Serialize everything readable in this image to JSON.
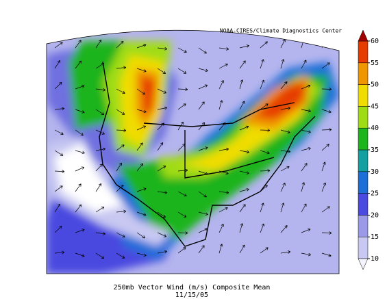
{
  "map": {
    "credit": "NOAA-CIRES/Climate Diagnostics Center",
    "caption": "250mb Vector Wind (m/s) Composite Mean",
    "date": "11/15/05",
    "colorbar": {
      "ticks": [
        10,
        15,
        20,
        25,
        30,
        35,
        40,
        45,
        50,
        55,
        60
      ],
      "below_color": "#f4f4ff",
      "colors": [
        "#c8c8f2",
        "#9a9ae8",
        "#4a4ae0",
        "#1e6ed8",
        "#14a0a0",
        "#1eb41e",
        "#a0dc14",
        "#f0dc00",
        "#f09600",
        "#e63c00"
      ],
      "above_color": "#a00000"
    }
  }
}
